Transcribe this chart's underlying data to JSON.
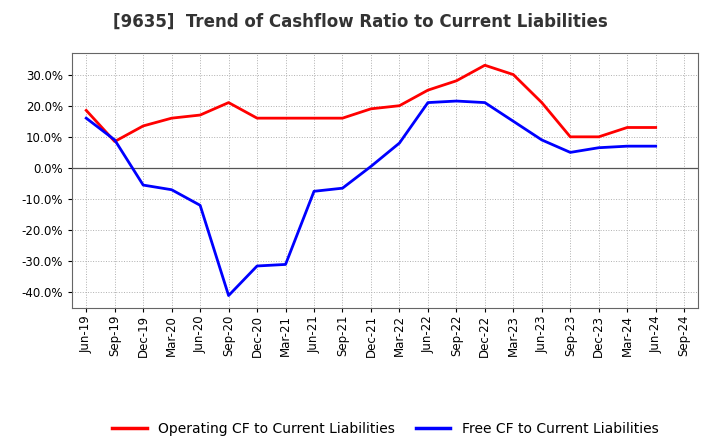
{
  "title": "[9635]  Trend of Cashflow Ratio to Current Liabilities",
  "x_labels": [
    "Jun-19",
    "Sep-19",
    "Dec-19",
    "Mar-20",
    "Jun-20",
    "Sep-20",
    "Dec-20",
    "Mar-21",
    "Jun-21",
    "Sep-21",
    "Dec-21",
    "Mar-22",
    "Jun-22",
    "Sep-22",
    "Dec-22",
    "Mar-23",
    "Jun-23",
    "Sep-23",
    "Dec-23",
    "Mar-24",
    "Jun-24",
    "Sep-24"
  ],
  "operating_cf": [
    18.5,
    8.5,
    13.5,
    16.0,
    17.0,
    21.0,
    16.0,
    16.0,
    16.0,
    16.0,
    19.0,
    20.0,
    25.0,
    28.0,
    33.0,
    30.0,
    21.0,
    10.0,
    10.0,
    13.0,
    13.0,
    null
  ],
  "free_cf": [
    16.0,
    9.0,
    -5.5,
    -7.0,
    -12.0,
    -41.0,
    -31.5,
    -31.0,
    -7.5,
    -6.5,
    0.5,
    8.0,
    21.0,
    21.5,
    21.0,
    15.0,
    9.0,
    5.0,
    6.5,
    7.0,
    7.0,
    null
  ],
  "ylim": [
    -45,
    37
  ],
  "yticks": [
    -40,
    -30,
    -20,
    -10,
    0,
    10,
    20,
    30
  ],
  "operating_color": "#ff0000",
  "free_color": "#0000ff",
  "background_color": "#ffffff",
  "grid_color": "#b0b0b0",
  "line_width": 2.0,
  "title_fontsize": 12,
  "legend_fontsize": 10,
  "tick_fontsize": 8.5
}
